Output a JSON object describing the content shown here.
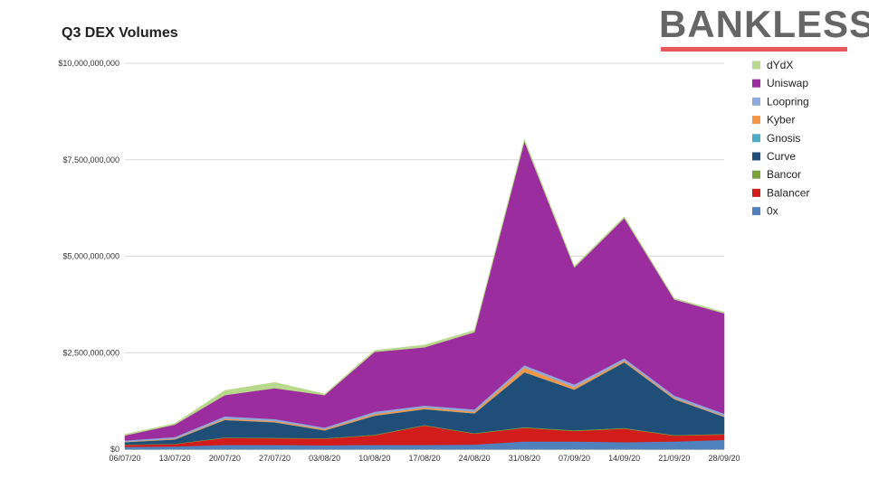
{
  "header": {
    "brand": "BANKLESS",
    "brand_accent": "#e8585a"
  },
  "chart_data": {
    "type": "area",
    "stacked": true,
    "title": "Q3 DEX Volumes",
    "xlabel": "",
    "ylabel": "",
    "ylim": [
      0,
      10000000000
    ],
    "yticks": [
      0,
      2500000000,
      5000000000,
      7500000000,
      10000000000
    ],
    "ytick_labels": [
      "$0",
      "$2,500,000,000",
      "$5,000,000,000",
      "$7,500,000,000",
      "$10,000,000,000"
    ],
    "grid": true,
    "legend_position": "right",
    "categories": [
      "06/07/20",
      "13/07/20",
      "20/07/20",
      "27/07/20",
      "03/08/20",
      "10/08/20",
      "17/08/20",
      "24/08/20",
      "31/08/20",
      "07/09/20",
      "14/09/20",
      "21/09/20",
      "28/09/20"
    ],
    "series": [
      {
        "name": "0x",
        "color": "#4f81bd",
        "values": [
          60000000,
          70000000,
          110000000,
          110000000,
          100000000,
          110000000,
          110000000,
          120000000,
          200000000,
          200000000,
          180000000,
          200000000,
          240000000
        ]
      },
      {
        "name": "Balancer",
        "color": "#d21c1c",
        "values": [
          50000000,
          60000000,
          180000000,
          170000000,
          170000000,
          250000000,
          500000000,
          280000000,
          350000000,
          270000000,
          350000000,
          150000000,
          140000000
        ]
      },
      {
        "name": "Bancor",
        "color": "#7aa33b",
        "values": [
          10000000,
          10000000,
          15000000,
          15000000,
          15000000,
          15000000,
          15000000,
          15000000,
          20000000,
          20000000,
          20000000,
          15000000,
          15000000
        ]
      },
      {
        "name": "Curve",
        "color": "#1f4e79",
        "values": [
          60000000,
          110000000,
          450000000,
          400000000,
          200000000,
          490000000,
          410000000,
          510000000,
          1420000000,
          1050000000,
          1700000000,
          930000000,
          440000000
        ]
      },
      {
        "name": "Gnosis",
        "color": "#4bacc6",
        "values": [
          5000000,
          5000000,
          5000000,
          5000000,
          5000000,
          5000000,
          5000000,
          5000000,
          5000000,
          5000000,
          5000000,
          5000000,
          5000000
        ]
      },
      {
        "name": "Kyber",
        "color": "#f79646",
        "values": [
          10000000,
          20000000,
          30000000,
          30000000,
          30000000,
          40000000,
          40000000,
          40000000,
          120000000,
          60000000,
          40000000,
          30000000,
          20000000
        ]
      },
      {
        "name": "Loopring",
        "color": "#8eaadb",
        "values": [
          30000000,
          40000000,
          60000000,
          50000000,
          40000000,
          60000000,
          50000000,
          60000000,
          60000000,
          70000000,
          60000000,
          60000000,
          60000000
        ]
      },
      {
        "name": "Uniswap",
        "color": "#9b2d9e",
        "values": [
          130000000,
          320000000,
          550000000,
          800000000,
          840000000,
          1550000000,
          1510000000,
          2000000000,
          5800000000,
          3030000000,
          3630000000,
          2490000000,
          2600000000
        ]
      },
      {
        "name": "dYdX",
        "color": "#b8d88b",
        "values": [
          30000000,
          30000000,
          120000000,
          150000000,
          30000000,
          40000000,
          60000000,
          50000000,
          60000000,
          40000000,
          40000000,
          30000000,
          30000000
        ]
      }
    ]
  }
}
